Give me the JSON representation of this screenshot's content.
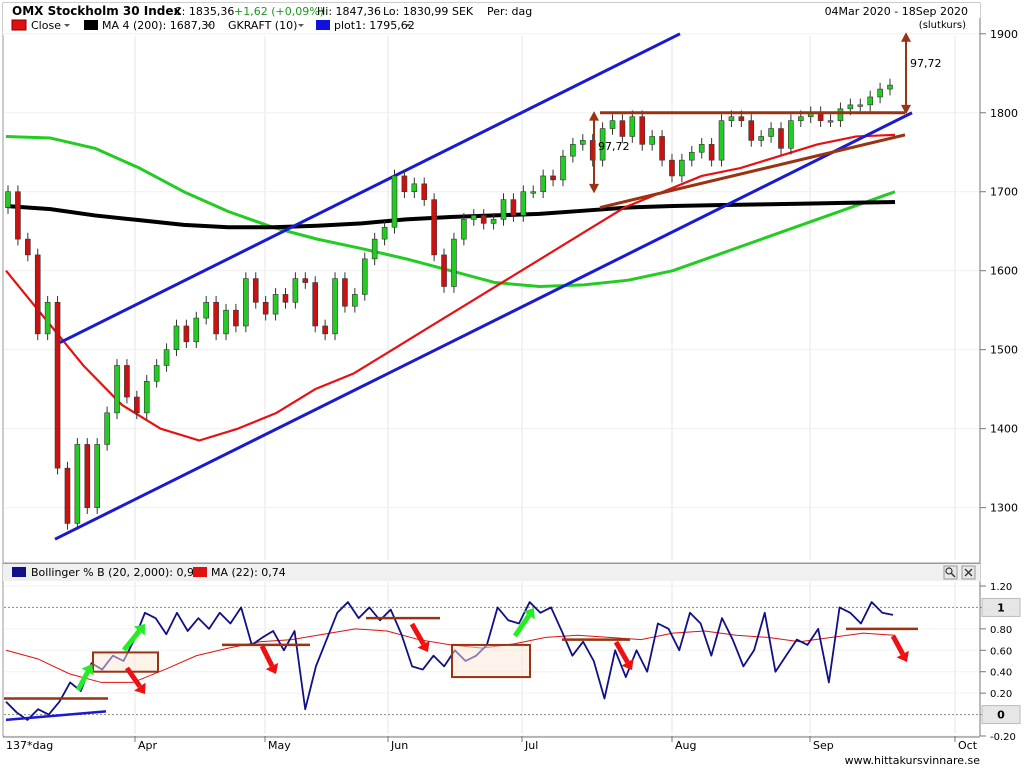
{
  "header": {
    "title": "OMX Stockholm 30 Index",
    "close_text": "C: 1835,36",
    "change_text": "+1,62 (+0,09%)",
    "high_text": "Hi: 1847,36",
    "low_text": "Lo: 1830,99",
    "currency": "SEK",
    "period_text": "Per: dag",
    "date_range": "04Mar 2020 - 18Sep 2020",
    "basis": "(slutkurs)"
  },
  "legend_main": [
    {
      "label": "Close",
      "color": "#e01010",
      "dropdown": true
    },
    {
      "label": "MA 4 (200): 1687,30",
      "color": "#000000",
      "dropdown": true
    },
    {
      "label": "GKRAFT (10)",
      "color": "",
      "dropdown": true
    },
    {
      "label": "plot1: 1795,62",
      "color": "#1010e0",
      "dropdown": true
    }
  ],
  "legend_lower": [
    {
      "label": "Bollinger % B (20, 2,000): 0,93",
      "color": "#101088"
    },
    {
      "label": "MA (22): 0,74",
      "color": "#e01010"
    }
  ],
  "annotations": {
    "measure_right": "97,72",
    "measure_left": "97,72"
  },
  "colors": {
    "bull": "#22cc22",
    "bear": "#cc1111",
    "channel": "#1a1ad0",
    "ma50": "#e81010",
    "ma200": "#000000",
    "ma_green": "#22cc22",
    "annot": "#993311",
    "arrow_green": "#22ee22",
    "arrow_red": "#ee1111"
  },
  "x_axis": {
    "labels": [
      "137*dag",
      "Apr",
      "May",
      "Jun",
      "Jul",
      "Aug",
      "Sep",
      "Oct"
    ]
  },
  "footer": "www.hittakursvinnare.se",
  "chart_data": [
    {
      "type": "candlestick",
      "title": "OMX Stockholm 30 Index",
      "ylim": [
        1240,
        1920
      ],
      "y_ticks": [
        1300,
        1400,
        1500,
        1600,
        1700,
        1800,
        1900
      ],
      "y_tick_labels": [
        "1300",
        "1400",
        "1500",
        "1600",
        "1700",
        "1800",
        "1900"
      ],
      "close": [
        1700,
        1640,
        1620,
        1520,
        1560,
        1350,
        1280,
        1380,
        1300,
        1380,
        1420,
        1480,
        1440,
        1420,
        1460,
        1480,
        1500,
        1530,
        1510,
        1540,
        1560,
        1520,
        1550,
        1530,
        1590,
        1560,
        1545,
        1570,
        1560,
        1590,
        1585,
        1530,
        1520,
        1590,
        1555,
        1570,
        1615,
        1640,
        1655,
        1720,
        1700,
        1710,
        1690,
        1620,
        1580,
        1640,
        1665,
        1670,
        1660,
        1665,
        1690,
        1670,
        1700,
        1700,
        1720,
        1715,
        1745,
        1760,
        1765,
        1740,
        1780,
        1790,
        1770,
        1795,
        1760,
        1770,
        1740,
        1720,
        1740,
        1750,
        1760,
        1740,
        1790,
        1795,
        1790,
        1765,
        1770,
        1780,
        1755,
        1790,
        1795,
        1800,
        1790,
        1790,
        1805,
        1810,
        1810,
        1820,
        1830,
        1835
      ],
      "ma50": [
        1600,
        1540,
        1480,
        1430,
        1400,
        1385,
        1400,
        1420,
        1450,
        1470,
        1500,
        1530,
        1560,
        1590,
        1620,
        1650,
        1680,
        1700,
        1720,
        1730,
        1745,
        1760,
        1770,
        1772
      ],
      "ma200": [
        1682,
        1678,
        1670,
        1664,
        1658,
        1655,
        1655,
        1657,
        1660,
        1665,
        1668,
        1670,
        1672,
        1676,
        1680,
        1682,
        1683,
        1684,
        1685,
        1686,
        1687
      ],
      "ma_green": [
        1770,
        1768,
        1755,
        1730,
        1700,
        1675,
        1655,
        1640,
        1628,
        1615,
        1600,
        1585,
        1580,
        1582,
        1588,
        1600,
        1620,
        1640,
        1660,
        1680,
        1700
      ],
      "channel_upper": [
        [
          1509,
          1940
        ],
        [
          1900,
          1875
        ]
      ],
      "channel_lower": [
        [
          1260,
          1805
        ],
        [
          1800,
          1805
        ]
      ],
      "resistance": 1800
    },
    {
      "type": "line",
      "title": "",
      "ylim": [
        -0.2,
        1.2
      ],
      "y_ticks": [
        -0.2,
        0,
        0.2,
        0.4,
        0.6,
        0.8,
        1,
        1.2
      ],
      "y_tick_labels": [
        "-0.20",
        "0",
        "0.20",
        "0.40",
        "0.60",
        "0.80",
        "1",
        "1.20"
      ],
      "series": [
        {
          "name": "Bollinger % B (20, 2,000): 0,93",
          "values": [
            0.12,
            0.02,
            -0.05,
            0.05,
            0.0,
            0.12,
            0.3,
            0.22,
            0.48,
            0.42,
            0.55,
            0.5,
            0.7,
            0.95,
            0.9,
            0.75,
            0.95,
            0.78,
            0.9,
            0.8,
            0.95,
            0.85,
            1.0,
            0.65,
            0.72,
            0.78,
            0.6,
            0.78,
            0.05,
            0.45,
            0.7,
            0.95,
            1.05,
            0.9,
            1.0,
            0.88,
            0.98,
            0.75,
            0.45,
            0.42,
            0.55,
            0.45,
            0.6,
            0.5,
            0.55,
            0.65,
            1.0,
            0.88,
            0.85,
            1.05,
            0.95,
            1.0,
            0.78,
            0.55,
            0.68,
            0.5,
            0.15,
            0.6,
            0.35,
            0.6,
            0.4,
            0.85,
            0.8,
            0.6,
            0.95,
            0.85,
            0.55,
            0.9,
            0.7,
            0.45,
            0.6,
            0.95,
            0.4,
            0.55,
            0.7,
            0.65,
            0.8,
            0.3,
            1.0,
            0.95,
            0.85,
            1.05,
            0.95,
            0.93
          ]
        },
        {
          "name": "MA (22): 0,74",
          "values": [
            0.6,
            0.52,
            0.38,
            0.3,
            0.3,
            0.42,
            0.55,
            0.62,
            0.68,
            0.7,
            0.75,
            0.8,
            0.78,
            0.7,
            0.65,
            0.62,
            0.66,
            0.72,
            0.74,
            0.72,
            0.7,
            0.76,
            0.78,
            0.74,
            0.72,
            0.68,
            0.72,
            0.76,
            0.74
          ]
        }
      ]
    }
  ]
}
